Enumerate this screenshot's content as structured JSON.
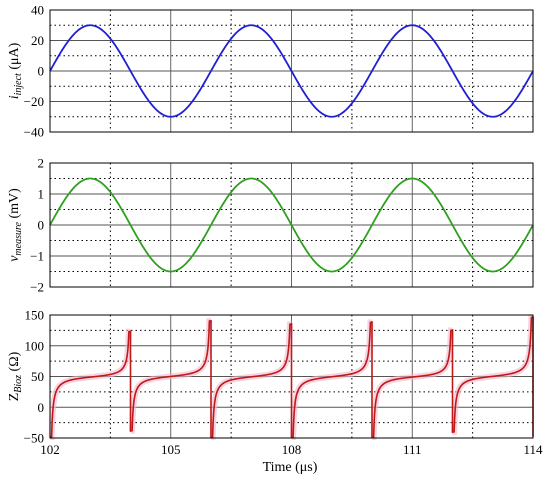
{
  "chart_data": [
    {
      "type": "line",
      "x_range": [
        102,
        114
      ],
      "x_ticks_labeled": [
        102,
        105,
        108,
        111,
        114
      ],
      "x_minor_dotted": [
        103.5,
        106.5,
        109.5,
        112.5
      ],
      "ylim": [
        -40,
        40
      ],
      "yticks": [
        "40",
        "20",
        "0",
        "−20",
        "−40"
      ],
      "ytick_values": [
        40,
        20,
        0,
        -20,
        -40
      ],
      "y_minor_dotted": [
        30,
        10,
        -10,
        -30
      ],
      "ylabel": {
        "main": "i",
        "sub": "inject",
        "unit": " (μA)"
      },
      "grid": true,
      "series": [
        {
          "color": "#1f1fd6",
          "amplitude": 30,
          "period_us": 4,
          "phase_start_us": 102,
          "waveform": "sine"
        }
      ]
    },
    {
      "type": "line",
      "x_range": [
        102,
        114
      ],
      "ylim": [
        -2,
        2
      ],
      "yticks": [
        "2",
        "1",
        "0",
        "−1",
        "−2"
      ],
      "ytick_values": [
        2,
        1,
        0,
        -1,
        -2
      ],
      "y_minor_dotted": [
        1.5,
        0.5,
        -0.5,
        -1.5
      ],
      "ylabel": {
        "main": "v",
        "sub": "measure",
        "unit": " (mV)"
      },
      "grid": true,
      "series": [
        {
          "color": "#2ea01e",
          "amplitude": 1.5,
          "period_us": 4,
          "phase_start_us": 102,
          "waveform": "sine"
        }
      ]
    },
    {
      "type": "line",
      "x_range": [
        102,
        114
      ],
      "ylim": [
        -50,
        150
      ],
      "yticks": [
        "150",
        "100",
        "50",
        "0",
        "−50"
      ],
      "ytick_values": [
        150,
        100,
        50,
        0,
        -50
      ],
      "y_minor_dotted": [
        125,
        75,
        25,
        -25
      ],
      "ylabel": {
        "main": "Z",
        "sub": "Bioz",
        "unit": " (Ω)"
      },
      "xlabel": "Time (μs)",
      "grid": true,
      "baseline_value": 50,
      "spike_times_us": [
        104,
        106,
        108,
        110,
        112,
        114
      ],
      "spike_peaks": [
        125,
        142,
        137,
        140,
        127,
        148
      ],
      "spike_troughs": [
        -40,
        -50,
        -50,
        -50,
        -42,
        -48
      ],
      "series": [
        {
          "color": "#c01818",
          "band_color": "#f4b6cc",
          "waveform": "impedance"
        }
      ]
    }
  ]
}
